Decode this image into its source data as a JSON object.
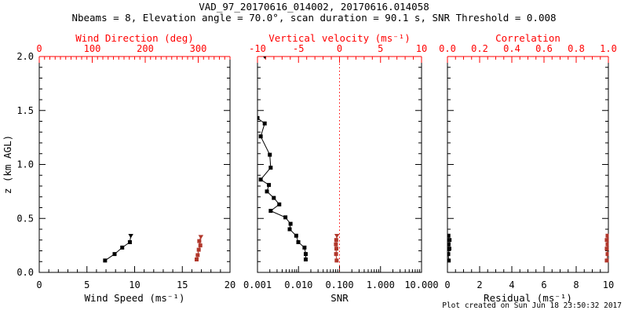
{
  "title": "VAD_97_20170616_014002, 20170616.014058",
  "subtitle": "Nbeams = 8, Elevation angle = 70.0°, scan duration = 90.1 s, SNR Threshold = 0.008",
  "footer": "Plot created on Sun Jun 18 23:50:32 2017",
  "ylabel": "z (km AGL)",
  "colors": {
    "background": "#ffffff",
    "frame": "#000000",
    "axis_red": "#ff0000",
    "data_black": "#000000",
    "data_red": "#b1372b"
  },
  "chart_data": [
    {
      "type": "scatter",
      "name": "wind",
      "x_bottom": {
        "label": "Wind Speed (ms⁻¹)",
        "min": 0,
        "max": 20,
        "major": [
          0,
          5,
          10,
          15,
          20
        ],
        "major_labels": [
          "0",
          "5",
          "10",
          "15",
          "20"
        ],
        "minor_step": 1
      },
      "x_top": {
        "label": "Wind Direction (deg)",
        "min": 0,
        "max": 360,
        "major": [
          0,
          100,
          200,
          300
        ],
        "major_labels": [
          "0",
          "100",
          "200",
          "300"
        ],
        "minor_step": 10
      },
      "y": {
        "label": "z (km AGL)",
        "min": 0,
        "max": 2,
        "major": [
          0,
          0.5,
          1,
          1.5,
          2
        ],
        "major_labels": [
          "0.0",
          "0.5",
          "1.0",
          "1.5",
          "2.0"
        ],
        "minor_step": 0.1,
        "show_labels": true
      },
      "series": [
        {
          "name": "wind-speed",
          "axis": "bottom",
          "color": "black",
          "top_marker": "triangle-down",
          "z": [
            0.11,
            0.17,
            0.23,
            0.28,
            0.34
          ],
          "values": [
            6.9,
            7.9,
            8.7,
            9.5,
            9.6
          ]
        },
        {
          "name": "wind-direction",
          "axis": "top",
          "color": "red",
          "top_marker": "triangle-down",
          "z": [
            0.12,
            0.16,
            0.21,
            0.25,
            0.29,
            0.33
          ],
          "values": [
            297,
            299,
            301,
            304,
            302,
            305
          ]
        }
      ]
    },
    {
      "type": "scatter",
      "name": "snr-vv",
      "x_bottom": {
        "label": "SNR",
        "min": 0.001,
        "max": 10,
        "scale": "log",
        "major": [
          0.001,
          0.01,
          0.1,
          1,
          10
        ],
        "major_labels": [
          "0.001",
          "0.010",
          "0.100",
          "1.000",
          "10.000"
        ]
      },
      "x_top": {
        "label": "Vertical velocity (ms⁻¹)",
        "min": -10,
        "max": 10,
        "major": [
          -10,
          -5,
          0,
          5,
          10
        ],
        "major_labels": [
          "-10",
          "-5",
          "0",
          "5",
          "10"
        ],
        "minor_step": 1
      },
      "y": {
        "label": "",
        "min": 0,
        "max": 2,
        "major": [
          0,
          0.5,
          1,
          1.5,
          2
        ],
        "major_labels": [
          "0.0",
          "0.5",
          "1.0",
          "1.5",
          "2.0"
        ],
        "minor_step": 0.1,
        "show_labels": false
      },
      "ref_line": {
        "name": "vertical-velocity-zero-line",
        "axis": "top",
        "value": 0,
        "style": "dotted",
        "color": "red"
      },
      "series": [
        {
          "name": "snr-profile",
          "axis": "bottom",
          "color": "black",
          "z": [
            0.12,
            0.17,
            0.23,
            0.28,
            0.34,
            0.4,
            0.45,
            0.51,
            0.57,
            0.63,
            0.69,
            0.75,
            0.81,
            0.86,
            0.97,
            1.09,
            1.26,
            1.38,
            1.43
          ],
          "values": [
            0.015,
            0.015,
            0.014,
            0.0099,
            0.0088,
            0.0061,
            0.0064,
            0.0048,
            0.0021,
            0.0034,
            0.0025,
            0.0017,
            0.0019,
            0.0012,
            0.0021,
            0.002,
            0.0012,
            0.0015,
            0.001
          ]
        },
        {
          "name": "snr-top-point",
          "axis": "bottom",
          "color": "black",
          "line": false,
          "top_marker": "triangle-down",
          "z": [
            2.0
          ],
          "values": [
            0.0015
          ]
        },
        {
          "name": "vertical-velocity",
          "axis": "top",
          "color": "red",
          "top_marker": "triangle-down",
          "z": [
            0.11,
            0.17,
            0.22,
            0.26,
            0.3,
            0.34
          ],
          "values": [
            -0.35,
            -0.42,
            -0.38,
            -0.44,
            -0.4,
            -0.32
          ]
        }
      ]
    },
    {
      "type": "scatter",
      "name": "residual-correlation",
      "x_bottom": {
        "label": "Residual (ms⁻¹)",
        "min": 0,
        "max": 10,
        "major": [
          0,
          2,
          4,
          6,
          8,
          10
        ],
        "major_labels": [
          "0",
          "2",
          "4",
          "6",
          "8",
          "10"
        ],
        "minor_step": 0.5
      },
      "x_top": {
        "label": "Correlation",
        "min": 0,
        "max": 1,
        "major": [
          0,
          0.2,
          0.4,
          0.6,
          0.8,
          1.0
        ],
        "major_labels": [
          "0.0",
          "0.2",
          "0.4",
          "0.6",
          "0.8",
          "1.0"
        ],
        "minor_step": 0.05
      },
      "y": {
        "label": "",
        "min": 0,
        "max": 2,
        "major": [
          0,
          0.5,
          1,
          1.5,
          2
        ],
        "major_labels": [
          "0.0",
          "0.5",
          "1.0",
          "1.5",
          "2.0"
        ],
        "minor_step": 0.1,
        "show_labels": false
      },
      "series": [
        {
          "name": "residual",
          "axis": "bottom",
          "color": "black",
          "z": [
            0.11,
            0.17,
            0.22,
            0.26,
            0.3,
            0.34
          ],
          "values": [
            0.08,
            0.05,
            0.12,
            0.07,
            0.13,
            0.06
          ]
        },
        {
          "name": "correlation",
          "axis": "top",
          "color": "red",
          "z": [
            0.11,
            0.17,
            0.22,
            0.26,
            0.3,
            0.34
          ],
          "values": [
            0.99,
            0.995,
            0.99,
            0.995,
            0.99,
            0.995
          ]
        }
      ]
    }
  ]
}
